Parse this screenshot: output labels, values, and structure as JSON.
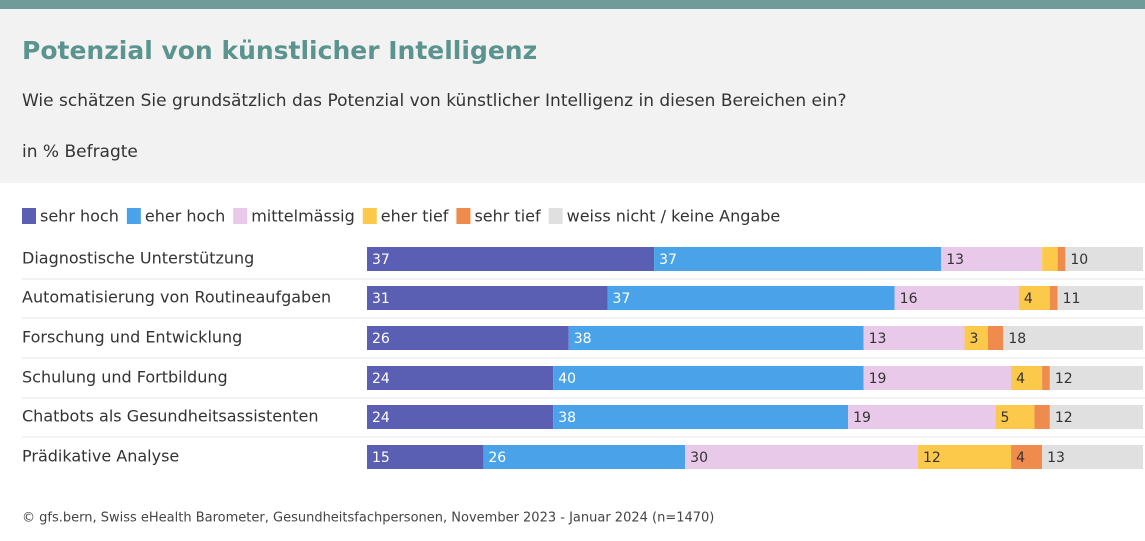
{
  "chart_data": {
    "type": "stacked_bar_horizontal",
    "title": "Potenzial von künstlicher Intelligenz",
    "subtitle": "Wie schätzen Sie grundsätzlich das Potenzial von künstlicher Intelligenz in diesen Bereichen ein?",
    "unit_note": "in % Befragte",
    "source": "© gfs.bern, Swiss eHealth Barometer, Gesundheitsfachpersonen, November 2023 - Januar 2024 (n=1470)",
    "categories": [
      "Diagnostische Unterstützung",
      "Automatisierung von Routineaufgaben",
      "Forschung und Entwicklung",
      "Schulung und Fortbildung",
      "Chatbots als Gesundheitsassistenten",
      "Prädikative Analyse"
    ],
    "xlim": [
      0,
      100
    ],
    "series": [
      {
        "name": "sehr hoch",
        "color": "#5a5fb4",
        "values": [
          37,
          31,
          26,
          24,
          24,
          15
        ]
      },
      {
        "name": "eher hoch",
        "color": "#4aa3e8",
        "values": [
          37,
          37,
          38,
          40,
          38,
          26
        ]
      },
      {
        "name": "mittelmässig",
        "color": "#e8c9ea",
        "values": [
          13,
          16,
          13,
          19,
          19,
          30
        ]
      },
      {
        "name": "eher tief",
        "color": "#fcc94b",
        "values": [
          2,
          4,
          3,
          4,
          5,
          12
        ]
      },
      {
        "name": "sehr tief",
        "color": "#ef8b4c",
        "values": [
          1,
          1,
          2,
          1,
          2,
          4
        ]
      },
      {
        "name": "weiss nicht / keine Angabe",
        "color": "#e0e0e0",
        "values": [
          10,
          11,
          18,
          12,
          12,
          13
        ]
      }
    ]
  }
}
